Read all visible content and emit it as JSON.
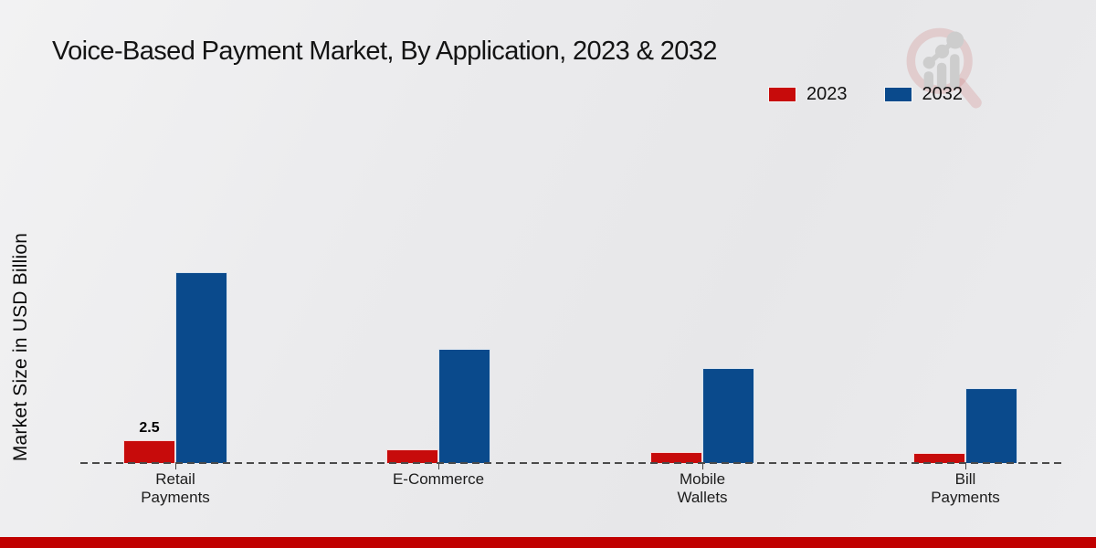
{
  "title": "Voice-Based Payment Market, By Application, 2023 & 2032",
  "y_axis_label": "Market Size in USD Billion",
  "legend": {
    "position": "top-right",
    "items": [
      {
        "label": "2023",
        "color": "#c70b0b"
      },
      {
        "label": "2032",
        "color": "#0a4a8c"
      }
    ]
  },
  "colors": {
    "series_2023": "#c70b0b",
    "series_2032": "#0a4a8c",
    "bottom_band": "#c00000",
    "background": "#ebebed",
    "baseline_dash": "#4a4a4a"
  },
  "watermark": "magnifier-bar-chart-logo",
  "chart_data": {
    "type": "bar",
    "title": "Voice-Based Payment Market, By Application, 2023 & 2032",
    "categories": [
      "Retail Payments",
      "E-Commerce",
      "Mobile Wallets",
      "Bill Payments"
    ],
    "categories_display": [
      [
        "Retail",
        "Payments"
      ],
      [
        "E-Commerce"
      ],
      [
        "Mobile",
        "Wallets"
      ],
      [
        "Bill",
        "Payments"
      ]
    ],
    "series": [
      {
        "name": "2023",
        "color": "#c70b0b",
        "values": [
          2.5,
          1.5,
          1.2,
          1.1
        ]
      },
      {
        "name": "2032",
        "color": "#0a4a8c",
        "values": [
          20.9,
          12.5,
          10.4,
          8.2
        ]
      }
    ],
    "bar_labels": [
      {
        "series": "2023",
        "category": "Retail Payments",
        "category_index": 0,
        "series_index": 0,
        "text": "2.5"
      }
    ],
    "xlabel": "",
    "ylabel": "Market Size in USD Billion",
    "ylim": [
      0,
      25
    ],
    "value_axis_ticks_shown": false,
    "grid": false,
    "legend_position": "top-right",
    "note": "Only the Retail Payments 2023 bar carries a printed data label (2.5); other values estimated from bar heights."
  }
}
